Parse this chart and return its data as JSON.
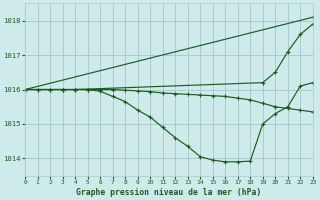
{
  "background_color": "#ceeaea",
  "grid_color": "#aacccc",
  "line_color": "#1a5c20",
  "title": "Graphe pression niveau de la mer (hPa)",
  "xlim": [
    0,
    23
  ],
  "ylim": [
    1013.5,
    1018.5
  ],
  "yticks": [
    1014,
    1015,
    1016,
    1017,
    1018
  ],
  "xticks": [
    0,
    1,
    2,
    3,
    4,
    5,
    6,
    7,
    8,
    9,
    10,
    11,
    12,
    13,
    14,
    15,
    16,
    17,
    18,
    19,
    20,
    21,
    22,
    23
  ],
  "lines": [
    {
      "x": [
        0,
        23
      ],
      "y": [
        1016.0,
        1018.1
      ]
    },
    {
      "x": [
        0,
        3,
        4,
        19,
        20,
        21,
        22,
        23
      ],
      "y": [
        1016.0,
        1016.0,
        1016.0,
        1016.2,
        1016.5,
        1017.1,
        1017.6,
        1017.9
      ]
    },
    {
      "x": [
        0,
        1,
        2,
        3,
        4,
        5,
        6,
        7,
        8,
        9,
        10,
        11,
        12,
        13,
        14,
        15,
        16,
        17,
        18,
        19,
        20,
        21,
        22,
        23
      ],
      "y": [
        1016.0,
        1016.0,
        1016.0,
        1016.0,
        1016.0,
        1016.0,
        1016.0,
        1016.0,
        1015.98,
        1015.96,
        1015.94,
        1015.9,
        1015.88,
        1015.86,
        1015.84,
        1015.82,
        1015.8,
        1015.75,
        1015.7,
        1015.6,
        1015.5,
        1015.45,
        1015.4,
        1015.35
      ]
    },
    {
      "x": [
        0,
        1,
        2,
        3,
        4,
        5,
        6,
        7,
        8,
        9,
        10,
        11,
        12,
        13,
        14,
        15,
        16,
        17,
        18,
        19,
        20,
        21,
        22,
        23
      ],
      "y": [
        1016.0,
        1016.0,
        1016.0,
        1016.0,
        1016.0,
        1016.0,
        1015.95,
        1015.8,
        1015.65,
        1015.4,
        1015.2,
        1014.9,
        1014.6,
        1014.35,
        1014.05,
        1013.95,
        1013.9,
        1013.9,
        1013.92,
        1015.0,
        1015.3,
        1015.5,
        1016.1,
        1016.2
      ]
    }
  ]
}
